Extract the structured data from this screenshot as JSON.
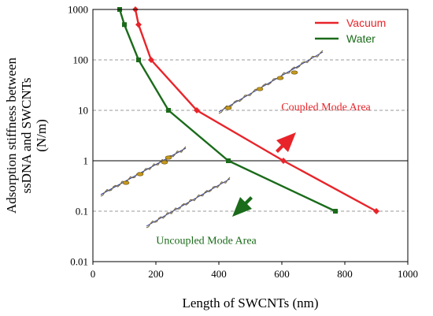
{
  "chart_data": {
    "type": "line",
    "title": "",
    "xlabel": "Length of SWCNTs (nm)",
    "ylabel": [
      "Adsorption stiffness between",
      "ssDNA and SWCNTs",
      "(N/m)"
    ],
    "x_scale": "linear",
    "y_scale": "log",
    "xlim": [
      0,
      1000
    ],
    "ylim": [
      0.01,
      1000
    ],
    "x_ticks": [
      0,
      200,
      400,
      600,
      800,
      1000
    ],
    "x_tick_labels": [
      "0",
      "200",
      "400",
      "600",
      "800",
      "1000"
    ],
    "y_ticks": [
      0.01,
      0.1,
      1,
      10,
      100,
      1000
    ],
    "y_tick_labels": [
      "0.01",
      "0.1",
      "1",
      "10",
      "100",
      "1000"
    ],
    "grid": "horizontal dashed",
    "reference_line_y": 1,
    "legend_position": "top-right",
    "series": [
      {
        "name": "Vacuum",
        "color": "#e8242a",
        "marker": "diamond",
        "points": [
          [
            135,
            1000
          ],
          [
            145,
            500
          ],
          [
            185,
            100
          ],
          [
            330,
            10
          ],
          [
            605,
            1
          ],
          [
            900,
            0.1
          ]
        ]
      },
      {
        "name": "Water",
        "color": "#1a6b1a",
        "marker": "square",
        "points": [
          [
            85,
            1000
          ],
          [
            100,
            500
          ],
          [
            145,
            100
          ],
          [
            240,
            10
          ],
          [
            430,
            1
          ],
          [
            770,
            0.1
          ]
        ]
      }
    ],
    "annotations": [
      {
        "text": "Coupled Mode Area",
        "color": "#e8242a",
        "x": 740,
        "y": 12
      },
      {
        "text": "Uncoupled Mode Area",
        "color": "#1a6b1a",
        "x": 360,
        "y": 0.027
      }
    ],
    "arrow_colors": {
      "up": "#e8242a",
      "down": "#1a6b1a"
    }
  }
}
